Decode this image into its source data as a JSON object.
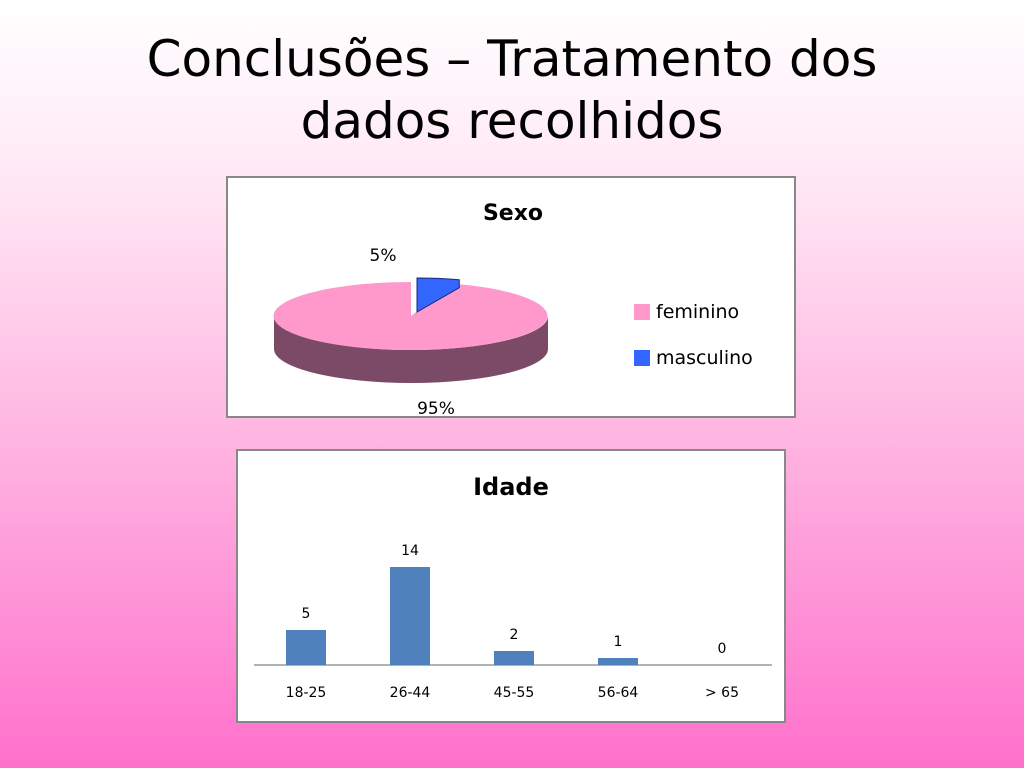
{
  "slide": {
    "title_line1": "Conclusões – Tratamento dos",
    "title_line2": "dados recolhidos"
  },
  "colors": {
    "feminino_top": "#ff99cc",
    "feminino_side": "#7a4a66",
    "masculino": "#3366ff",
    "bar": "#4f81bd"
  },
  "chart_data": [
    {
      "type": "pie",
      "title": "Sexo",
      "slices": [
        {
          "label": "feminino",
          "value": 95,
          "display": "95%"
        },
        {
          "label": "masculino",
          "value": 5,
          "display": "5%"
        }
      ],
      "legend_placement": "right",
      "style": "3d"
    },
    {
      "type": "bar",
      "title": "Idade",
      "categories": [
        "18-25",
        "26-44",
        "45-55",
        "56-64",
        "> 65"
      ],
      "values": [
        5,
        14,
        2,
        1,
        0
      ],
      "ylim": [
        0,
        14
      ],
      "grid": false,
      "legend": false
    }
  ]
}
